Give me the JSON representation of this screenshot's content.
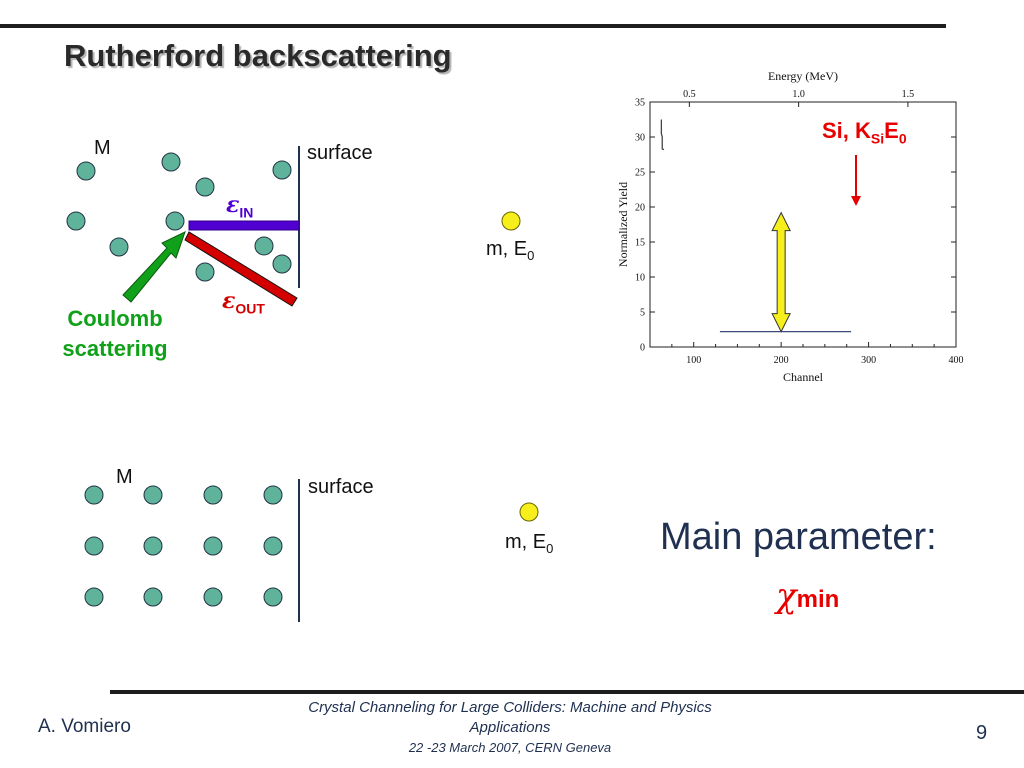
{
  "slide": {
    "title": "Rutherford backscattering",
    "footer_author": "A. Vomiero",
    "footer_conference": "Crystal Channeling for Large Colliders: Machine and Physics Applications",
    "footer_date": "22 -23  March 2007, CERN Geneva",
    "page_number": "9"
  },
  "upper_diagram": {
    "label_m": "M",
    "label_surface": "surface",
    "eps_symbol": "ε",
    "eps_in_sub": "IN",
    "eps_out_sub": "OUT",
    "label_beam": "m, E",
    "label_beam_sub": "0",
    "coulomb_line1": "Coulomb",
    "coulomb_line2": "scattering"
  },
  "lower_diagram": {
    "label_m": "M",
    "label_surface": "surface",
    "label_beam": "m, E",
    "label_beam_sub": "0"
  },
  "annotation": {
    "si_prefix": "Si, K",
    "si_sub": "Si",
    "si_e": "E",
    "si_e_sub": "0",
    "main_parameter": "Main parameter:",
    "chi_symbol": "χ",
    "chi_sub": "min"
  },
  "colors": {
    "atom_fill": "#5fb39b",
    "beam_particle": "#f6ef1c",
    "in_beam": "#5000d0",
    "out_beam": "#d40000",
    "coulomb_arrow": "#11a019",
    "yield_arrow": "#f6ef1c"
  },
  "chart_data": {
    "type": "line",
    "title": "",
    "xlabel": "Channel",
    "ylabel": "Normalized Yield",
    "x_top_label": "Energy (MeV)",
    "xlim": [
      50,
      400
    ],
    "ylim": [
      0,
      35
    ],
    "x_ticks": [
      "100",
      "200",
      "300",
      "400"
    ],
    "y_ticks": [
      "0",
      "5",
      "10",
      "15",
      "20",
      "25",
      "30",
      "35"
    ],
    "top_ticks": [
      "0.5",
      "1.0",
      "1.5"
    ],
    "series": [
      {
        "x": [
          130,
          280
        ],
        "y": [
          2.2,
          2.2
        ]
      },
      {
        "x": [
          63,
          63,
          64,
          64,
          66
        ],
        "y": [
          32.5,
          30.5,
          30,
          28.3,
          28.2
        ]
      }
    ],
    "arrow_x": 200,
    "arrow_y_range": [
      2.2,
      19.2
    ]
  }
}
